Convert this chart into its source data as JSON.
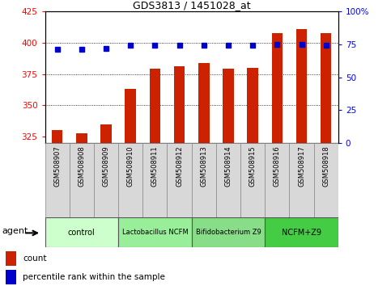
{
  "title": "GDS3813 / 1451028_at",
  "samples": [
    "GSM508907",
    "GSM508908",
    "GSM508909",
    "GSM508910",
    "GSM508911",
    "GSM508912",
    "GSM508913",
    "GSM508914",
    "GSM508915",
    "GSM508916",
    "GSM508917",
    "GSM508918"
  ],
  "bar_values": [
    330,
    328,
    335,
    363,
    379,
    381,
    384,
    379,
    380,
    408,
    411,
    408
  ],
  "dot_values": [
    71,
    71,
    72,
    74,
    74,
    74,
    74,
    74,
    74,
    75,
    75,
    74
  ],
  "bar_color": "#cc2200",
  "dot_color": "#0000cc",
  "ylim_left": [
    320,
    425
  ],
  "ylim_right": [
    0,
    100
  ],
  "yticks_left": [
    325,
    350,
    375,
    400,
    425
  ],
  "yticks_right": [
    0,
    25,
    50,
    75,
    100
  ],
  "grid_values": [
    350,
    375,
    400
  ],
  "groups": [
    {
      "label": "control",
      "start": 0,
      "end": 3,
      "color": "#ccffcc"
    },
    {
      "label": "Lactobacillus NCFM",
      "start": 3,
      "end": 6,
      "color": "#99ee99"
    },
    {
      "label": "Bifidobacterium Z9",
      "start": 6,
      "end": 9,
      "color": "#88dd88"
    },
    {
      "label": "NCFM+Z9",
      "start": 9,
      "end": 12,
      "color": "#44cc44"
    }
  ],
  "legend_count_label": "count",
  "legend_pct_label": "percentile rank within the sample",
  "agent_label": "agent"
}
